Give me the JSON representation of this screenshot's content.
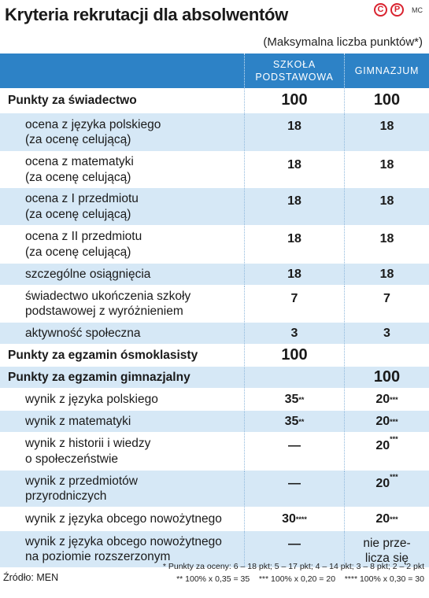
{
  "title": "Kryteria rekrutacji dla absolwentów",
  "logo": {
    "letter": "P",
    "credit": "MC"
  },
  "subtitle": "(Maksymalna liczba punktów*)",
  "columns": {
    "c1_line1": "SZKOŁA",
    "c1_line2": "PODSTAWOWA",
    "c2": "GIMNAZJUM"
  },
  "rows": [
    {
      "label": "Punkty za świadectwo",
      "v1": "100",
      "v2": "100"
    },
    {
      "label_l1": "ocena z języka polskiego",
      "label_l2": "(za ocenę celującą)",
      "v1": "18",
      "v2": "18"
    },
    {
      "label_l1": "ocena z matematyki",
      "label_l2": "(za ocenę celującą)",
      "v1": "18",
      "v2": "18"
    },
    {
      "label_l1": "ocena z I przedmiotu",
      "label_l2": "(za ocenę celującą)",
      "v1": "18",
      "v2": "18"
    },
    {
      "label_l1": "ocena z II przedmiotu",
      "label_l2": "(za ocenę celującą)",
      "v1": "18",
      "v2": "18"
    },
    {
      "label": "szczególne osiągnięcia",
      "v1": "18",
      "v2": "18"
    },
    {
      "label_l1": "świadectwo ukończenia szkoły",
      "label_l2": "podstawowej z wyróżnieniem",
      "v1": "7",
      "v2": "7"
    },
    {
      "label": "aktywność społeczna",
      "v1": "3",
      "v2": "3"
    },
    {
      "label": "Punkty za egzamin ósmoklasisty",
      "v1": "100",
      "v2": ""
    },
    {
      "label": "Punkty za egzamin gimnazjalny",
      "v1": "",
      "v2": "100"
    },
    {
      "label": "wynik z języka polskiego",
      "v1": "35",
      "v1_sup": "**",
      "v2": "20",
      "v2_sup": "***"
    },
    {
      "label": "wynik z matematyki",
      "v1": "35",
      "v1_sup": "**",
      "v2": "20",
      "v2_sup": "***"
    },
    {
      "label_l1": "wynik z historii i wiedzy",
      "label_l2": "o społeczeństwie",
      "v1": "—",
      "v2": "20",
      "v2_sup": "***"
    },
    {
      "label_l1": "wynik z przedmiotów",
      "label_l2": "przyrodniczych",
      "v1": "—",
      "v2": "20",
      "v2_sup": "***"
    },
    {
      "label": "wynik z języka obcego nowożytnego",
      "v1": "30",
      "v1_sup": "****",
      "v2": "20",
      "v2_sup": "***"
    },
    {
      "label_l1": "wynik z języka obcego nowożytnego",
      "label_l2": "na poziomie rozszerzonym",
      "v1": "—",
      "v2_l1": "nie prze-",
      "v2_l2": "licza się"
    }
  ],
  "footer": {
    "source": "Źródło: MEN",
    "note1": "* Punkty za oceny: 6 – 18 pkt; 5 – 17 pkt; 4 – 14 pkt; 3 – 8 pkt; 2 – 2 pkt",
    "note2": "** 100% x 0,35 = 35    *** 100% x 0,20 = 20    **** 100% x 0,30 = 30"
  }
}
